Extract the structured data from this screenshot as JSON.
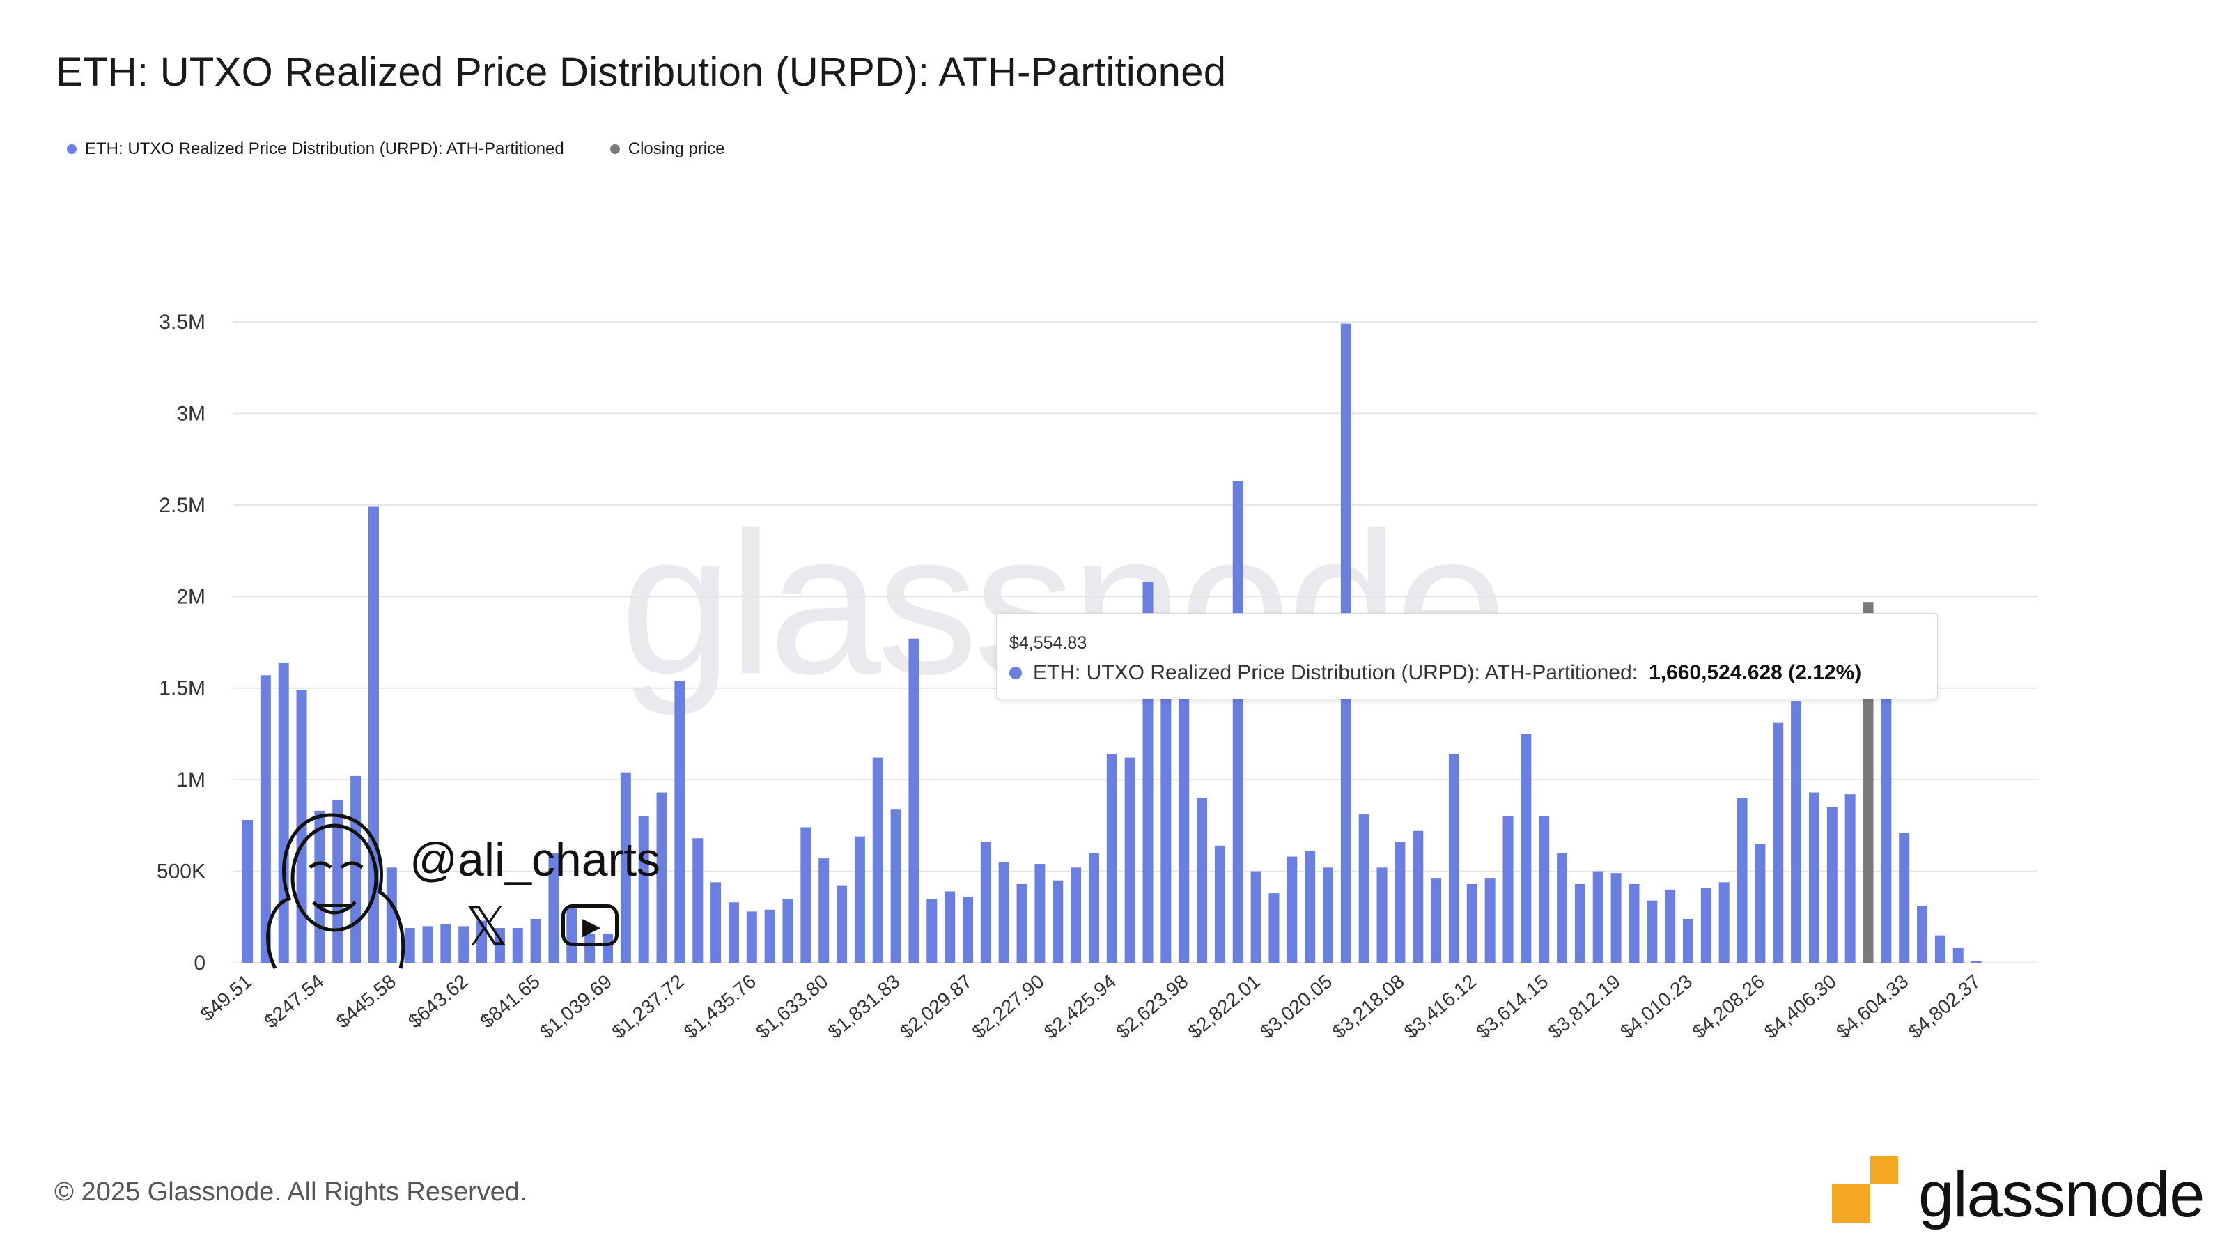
{
  "title": "ETH: UTXO Realized Price Distribution (URPD): ATH-Partitioned",
  "legend": [
    {
      "label": "ETH: UTXO Realized Price Distribution (URPD): ATH-Partitioned",
      "color": "#6a7fe0"
    },
    {
      "label": "Closing price",
      "color": "#7a7a7a"
    }
  ],
  "watermark": "glassnode",
  "tooltip": {
    "date": "$4,554.83",
    "series": "ETH: UTXO Realized Price Distribution (URPD): ATH-Partitioned:",
    "value": "1,660,524.628 (2.12%)"
  },
  "author": {
    "handle": "@ali_charts",
    "x_icon": "x-icon",
    "youtube_icon": "youtube-play-icon"
  },
  "footer": "© 2025 Glassnode. All Rights Reserved.",
  "brand": {
    "word": "glassnode",
    "accent": "#f5a623"
  },
  "colors": {
    "bar": "#6a7fe0",
    "closing": "#7a7a7a",
    "grid": "#e6e6e6"
  },
  "chart_data": {
    "type": "bar",
    "y_ticks": [
      "0",
      "500K",
      "1M",
      "1.5M",
      "2M",
      "2.5M",
      "3M",
      "3.5M"
    ],
    "ylim": [
      0,
      3500000
    ],
    "x_tick_labels": [
      "$49.51",
      "$247.54",
      "$445.58",
      "$643.62",
      "$841.65",
      "$1,039.69",
      "$1,237.72",
      "$1,435.76",
      "$1,633.80",
      "$1,831.83",
      "$2,029.87",
      "$2,227.90",
      "$2,425.94",
      "$2,623.98",
      "$2,822.01",
      "$3,020.05",
      "$3,218.08",
      "$3,416.12",
      "$3,614.15",
      "$3,812.19",
      "$4,010.23",
      "$4,208.26",
      "$4,406.30",
      "$4,604.33",
      "$4,802.37"
    ],
    "bars_per_tick": 4,
    "values": [
      780000,
      1570000,
      1640000,
      1490000,
      830000,
      890000,
      1020000,
      2490000,
      520000,
      190000,
      200000,
      210000,
      200000,
      230000,
      190000,
      190000,
      240000,
      600000,
      300000,
      160000,
      160000,
      1040000,
      800000,
      930000,
      1540000,
      680000,
      440000,
      330000,
      280000,
      290000,
      350000,
      740000,
      570000,
      420000,
      690000,
      1120000,
      840000,
      1770000,
      350000,
      390000,
      360000,
      660000,
      550000,
      430000,
      540000,
      450000,
      520000,
      600000,
      1140000,
      1120000,
      2080000,
      1460000,
      1830000,
      900000,
      640000,
      2630000,
      500000,
      380000,
      580000,
      610000,
      520000,
      3490000,
      810000,
      520000,
      660000,
      720000,
      460000,
      1140000,
      430000,
      460000,
      800000,
      1250000,
      800000,
      600000,
      430000,
      500000,
      490000,
      430000,
      340000,
      400000,
      240000,
      410000,
      440000,
      900000,
      650000,
      1310000,
      1430000,
      930000,
      850000,
      920000,
      1970000,
      1660000,
      710000,
      310000,
      150000,
      80000,
      10000
    ],
    "closing_price_index": 90
  }
}
